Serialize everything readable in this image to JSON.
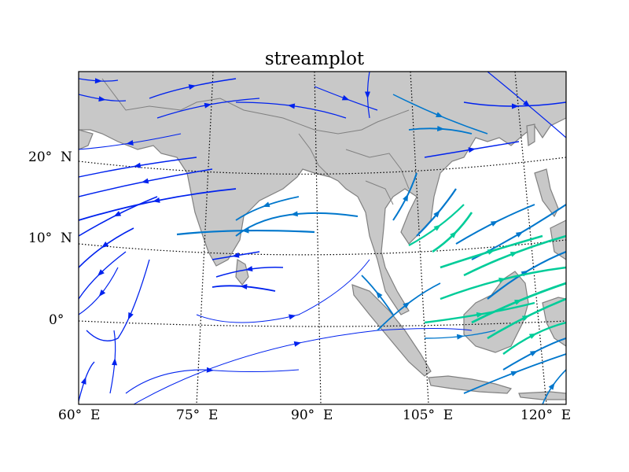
{
  "title": "streamplot",
  "colors": {
    "land": "#c8c8c8",
    "coast": "#808080",
    "stream_low": "#0022ee",
    "stream_mid": "#0077cc",
    "stream_high": "#00cc99"
  },
  "lat_labels": [
    "20°  N",
    "10°  N",
    "0°"
  ],
  "lon_labels": [
    "60°  E",
    "75°  E",
    "90°  E",
    "105°  E",
    "120°  E"
  ]
}
